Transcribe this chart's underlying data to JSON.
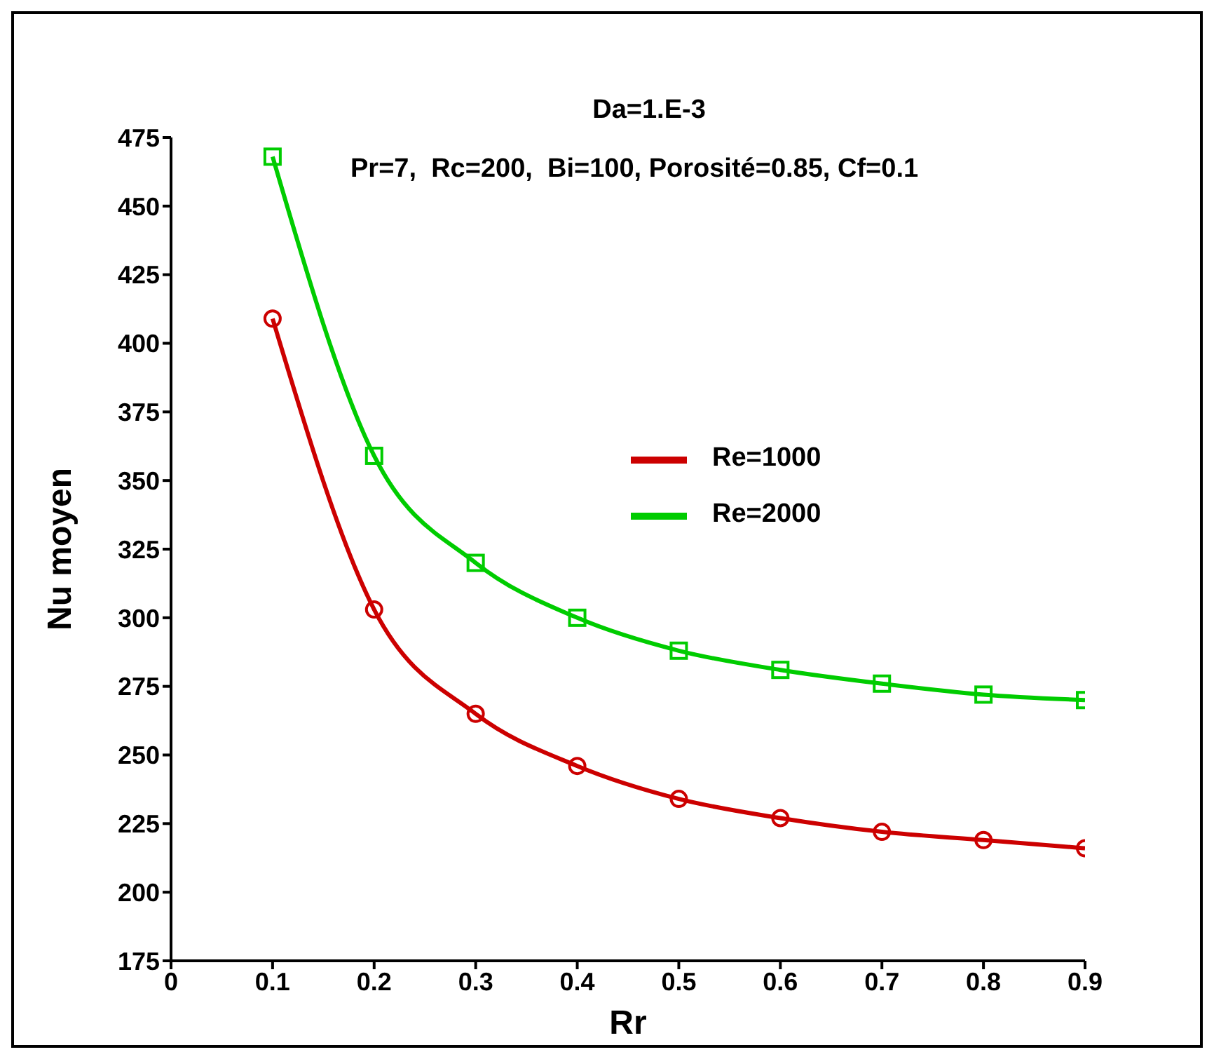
{
  "chart_data": {
    "type": "line",
    "title": "Da=1.E-3",
    "subtitle": "Pr=7,  Rc=200,  Bi=100, Porosité=0.85, Cf=0.1",
    "xlabel": "Rr",
    "ylabel": "Nu moyen",
    "x": [
      0.1,
      0.2,
      0.3,
      0.4,
      0.5,
      0.6,
      0.7,
      0.8,
      0.9
    ],
    "series": [
      {
        "name": "Re=1000",
        "color": "#cc0000",
        "marker": "circle",
        "values": [
          409,
          303,
          265,
          246,
          234,
          227,
          222,
          219,
          216
        ]
      },
      {
        "name": "Re=2000",
        "color": "#00cc00",
        "marker": "square",
        "values": [
          468,
          359,
          320,
          300,
          288,
          281,
          276,
          272,
          270
        ]
      }
    ],
    "xlim": [
      0,
      0.9
    ],
    "xticks": [
      0,
      0.1,
      0.2,
      0.3,
      0.4,
      0.5,
      0.6,
      0.7,
      0.8,
      0.9
    ],
    "ylim": [
      175,
      475
    ],
    "yticks": [
      175,
      200,
      225,
      250,
      275,
      300,
      325,
      350,
      375,
      400,
      425,
      450,
      475
    ],
    "legend": "right",
    "grid": false
  }
}
